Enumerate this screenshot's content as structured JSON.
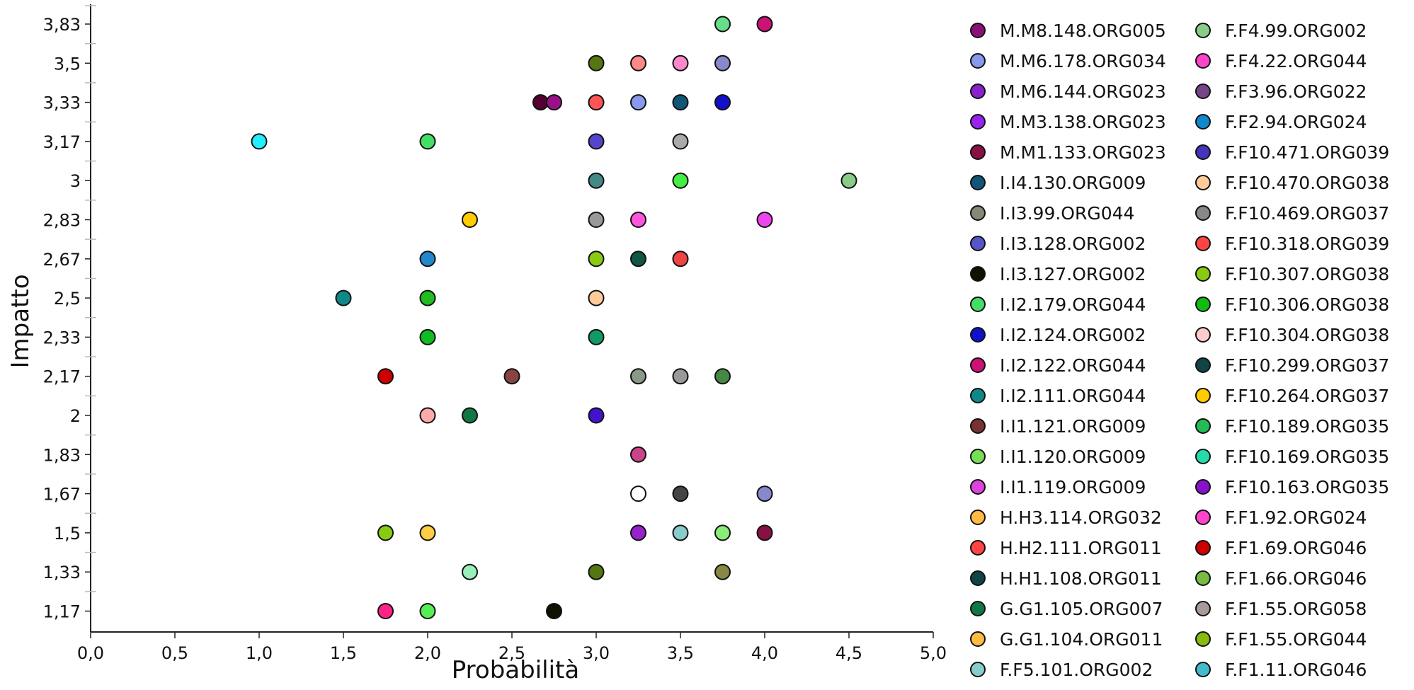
{
  "chart_data": {
    "type": "scatter",
    "xlabel": "Probabilità",
    "ylabel": "Impatto",
    "xlim": [
      0,
      5
    ],
    "x_ticks": [
      "0,0",
      "0,5",
      "1,0",
      "1,5",
      "2,0",
      "2,5",
      "3,0",
      "3,5",
      "4,0",
      "4,5",
      "5,0"
    ],
    "y_ticks": [
      "1,17",
      "1,33",
      "1,5",
      "1,67",
      "1,83",
      "2",
      "2,17",
      "2,33",
      "2,5",
      "2,67",
      "2,83",
      "3",
      "3,17",
      "3,33",
      "3,5",
      "3,83"
    ],
    "points": [
      {
        "x": 3.75,
        "y": "3,83",
        "color": "#66dd88"
      },
      {
        "x": 4.0,
        "y": "3,83",
        "color": "#cc1177"
      },
      {
        "x": 3.0,
        "y": "3,5",
        "color": "#557711"
      },
      {
        "x": 3.25,
        "y": "3,5",
        "color": "#ff8888"
      },
      {
        "x": 3.5,
        "y": "3,5",
        "color": "#ff88cc"
      },
      {
        "x": 3.75,
        "y": "3,5",
        "color": "#8888cc"
      },
      {
        "x": 2.67,
        "y": "3,33",
        "color": "#550033"
      },
      {
        "x": 2.75,
        "y": "3,33",
        "color": "#991188"
      },
      {
        "x": 3.0,
        "y": "3,33",
        "color": "#ff5555"
      },
      {
        "x": 3.25,
        "y": "3,33",
        "color": "#8899ee"
      },
      {
        "x": 3.5,
        "y": "3,33",
        "color": "#115577"
      },
      {
        "x": 3.75,
        "y": "3,33",
        "color": "#1111cc"
      },
      {
        "x": 1.0,
        "y": "3,17",
        "color": "#22eeff"
      },
      {
        "x": 2.0,
        "y": "3,17",
        "color": "#44dd66"
      },
      {
        "x": 3.0,
        "y": "3,17",
        "color": "#5544cc"
      },
      {
        "x": 3.5,
        "y": "3,17",
        "color": "#aaaaaa"
      },
      {
        "x": 3.0,
        "y": "3",
        "color": "#448888"
      },
      {
        "x": 3.5,
        "y": "3",
        "color": "#44ee44"
      },
      {
        "x": 4.5,
        "y": "3",
        "color": "#88cc88"
      },
      {
        "x": 2.25,
        "y": "2,83",
        "color": "#ffcc00"
      },
      {
        "x": 3.0,
        "y": "2,83",
        "color": "#999999"
      },
      {
        "x": 3.25,
        "y": "2,83",
        "color": "#ff55dd"
      },
      {
        "x": 4.0,
        "y": "2,83",
        "color": "#ee44ee"
      },
      {
        "x": 2.0,
        "y": "2,67",
        "color": "#2288cc"
      },
      {
        "x": 3.0,
        "y": "2,67",
        "color": "#88cc11"
      },
      {
        "x": 3.25,
        "y": "2,67",
        "color": "#115544"
      },
      {
        "x": 3.5,
        "y": "2,67",
        "color": "#ee4444"
      },
      {
        "x": 1.5,
        "y": "2,5",
        "color": "#118888"
      },
      {
        "x": 2.0,
        "y": "2,5",
        "color": "#22bb22"
      },
      {
        "x": 3.0,
        "y": "2,5",
        "color": "#ffcc99"
      },
      {
        "x": 2.0,
        "y": "2,33",
        "color": "#11bb22"
      },
      {
        "x": 3.0,
        "y": "2,33",
        "color": "#119966"
      },
      {
        "x": 1.75,
        "y": "2,17",
        "color": "#cc0000"
      },
      {
        "x": 2.5,
        "y": "2,17",
        "color": "#884444"
      },
      {
        "x": 3.25,
        "y": "2,17",
        "color": "#889988"
      },
      {
        "x": 3.5,
        "y": "2,17",
        "color": "#999999"
      },
      {
        "x": 3.75,
        "y": "2,17",
        "color": "#448844"
      },
      {
        "x": 2.0,
        "y": "2",
        "color": "#ffaaaa"
      },
      {
        "x": 2.25,
        "y": "2",
        "color": "#117744"
      },
      {
        "x": 3.0,
        "y": "2",
        "color": "#4411cc"
      },
      {
        "x": 3.25,
        "y": "1,83",
        "color": "#cc4488"
      },
      {
        "x": 3.25,
        "y": "1,67",
        "color": "#ffffff"
      },
      {
        "x": 3.5,
        "y": "1,67",
        "color": "#444444"
      },
      {
        "x": 4.0,
        "y": "1,67",
        "color": "#8888cc"
      },
      {
        "x": 1.75,
        "y": "1,5",
        "color": "#88cc11"
      },
      {
        "x": 2.0,
        "y": "1,5",
        "color": "#ffcc44"
      },
      {
        "x": 3.25,
        "y": "1,5",
        "color": "#9922cc"
      },
      {
        "x": 3.5,
        "y": "1,5",
        "color": "#88cccc"
      },
      {
        "x": 3.75,
        "y": "1,5",
        "color": "#88ee77"
      },
      {
        "x": 4.0,
        "y": "1,5",
        "color": "#881144"
      },
      {
        "x": 2.25,
        "y": "1,33",
        "color": "#99eebb"
      },
      {
        "x": 3.0,
        "y": "1,33",
        "color": "#557711"
      },
      {
        "x": 3.75,
        "y": "1,33",
        "color": "#888844"
      },
      {
        "x": 1.75,
        "y": "1,17",
        "color": "#ff2288"
      },
      {
        "x": 2.0,
        "y": "1,17",
        "color": "#55ee55"
      },
      {
        "x": 2.75,
        "y": "1,17",
        "color": "#111100"
      }
    ],
    "legend_placement": "right",
    "legend": [
      {
        "label": "M.M8.148.ORG005",
        "color": "#881177"
      },
      {
        "label": "M.M6.178.ORG034",
        "color": "#8899ee"
      },
      {
        "label": "M.M6.144.ORG023",
        "color": "#8822cc"
      },
      {
        "label": "M.M3.138.ORG023",
        "color": "#9922ee"
      },
      {
        "label": "M.M1.133.ORG023",
        "color": "#881144"
      },
      {
        "label": "I.I4.130.ORG009",
        "color": "#115577"
      },
      {
        "label": "I.I3.99.ORG044",
        "color": "#888877"
      },
      {
        "label": "I.I3.128.ORG002",
        "color": "#5555cc"
      },
      {
        "label": "I.I3.127.ORG002",
        "color": "#111100"
      },
      {
        "label": "I.I2.179.ORG044",
        "color": "#44dd66"
      },
      {
        "label": "I.I2.124.ORG002",
        "color": "#1111cc"
      },
      {
        "label": "I.I2.122.ORG044",
        "color": "#cc1177"
      },
      {
        "label": "I.I2.111.ORG044",
        "color": "#118888"
      },
      {
        "label": "I.I1.121.ORG009",
        "color": "#773333"
      },
      {
        "label": "I.I1.120.ORG009",
        "color": "#77dd55"
      },
      {
        "label": "I.I1.119.ORG009",
        "color": "#dd44dd"
      },
      {
        "label": "H.H3.114.ORG032",
        "color": "#ffbb44"
      },
      {
        "label": "H.H2.111.ORG011",
        "color": "#ff4444"
      },
      {
        "label": "H.H1.108.ORG011",
        "color": "#114444"
      },
      {
        "label": "G.G1.105.ORG007",
        "color": "#117744"
      },
      {
        "label": "G.G1.104.ORG011",
        "color": "#ffbb44"
      },
      {
        "label": "F.F5.101.ORG002",
        "color": "#88cccc"
      },
      {
        "label": "F.F4.99.ORG002",
        "color": "#88cc88"
      },
      {
        "label": "F.F4.22.ORG044",
        "color": "#ff44cc"
      },
      {
        "label": "F.F3.96.ORG022",
        "color": "#774488"
      },
      {
        "label": "F.F2.94.ORG024",
        "color": "#1188cc"
      },
      {
        "label": "F.F10.471.ORG039",
        "color": "#4433bb"
      },
      {
        "label": "F.F10.470.ORG038",
        "color": "#ffcc99"
      },
      {
        "label": "F.F10.469.ORG037",
        "color": "#888888"
      },
      {
        "label": "F.F10.318.ORG039",
        "color": "#ff4444"
      },
      {
        "label": "F.F10.307.ORG038",
        "color": "#88cc11"
      },
      {
        "label": "F.F10.306.ORG038",
        "color": "#11bb11"
      },
      {
        "label": "F.F10.304.ORG038",
        "color": "#ffcccc"
      },
      {
        "label": "F.F10.299.ORG037",
        "color": "#114444"
      },
      {
        "label": "F.F10.264.ORG037",
        "color": "#ffcc00"
      },
      {
        "label": "F.F10.189.ORG035",
        "color": "#22bb55"
      },
      {
        "label": "F.F10.169.ORG035",
        "color": "#22ddaa"
      },
      {
        "label": "F.F10.163.ORG035",
        "color": "#8811cc"
      },
      {
        "label": "F.F1.92.ORG024",
        "color": "#ff44cc"
      },
      {
        "label": "F.F1.69.ORG046",
        "color": "#cc0000"
      },
      {
        "label": "F.F1.66.ORG046",
        "color": "#77bb44"
      },
      {
        "label": "F.F1.55.ORG058",
        "color": "#aa9999"
      },
      {
        "label": "F.F1.55.ORG044",
        "color": "#88bb11"
      },
      {
        "label": "F.F1.11.ORG046",
        "color": "#44bbcc"
      }
    ]
  }
}
